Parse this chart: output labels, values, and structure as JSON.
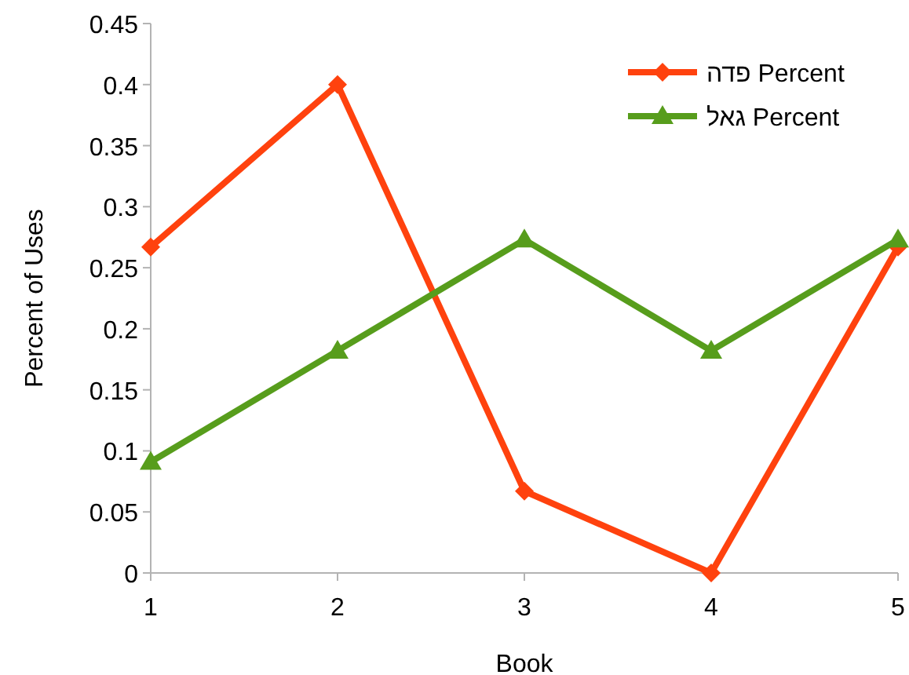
{
  "chart_data": {
    "type": "line",
    "xlabel": "Book",
    "ylabel": "Percent of Uses",
    "x": [
      1,
      2,
      3,
      4,
      5
    ],
    "xlim": [
      1,
      5
    ],
    "xticks": [
      1,
      2,
      3,
      4,
      5
    ],
    "ylim": [
      0,
      0.45
    ],
    "yticks": [
      0,
      0.05,
      0.1,
      0.15,
      0.2,
      0.25,
      0.3,
      0.35,
      0.4,
      0.45
    ],
    "series": [
      {
        "name": "פדה Percent",
        "color": "#ff420e",
        "marker": "diamond",
        "values": [
          0.267,
          0.4,
          0.067,
          0,
          0.267
        ]
      },
      {
        "name": "גאל Percent",
        "color": "#579d1c",
        "marker": "triangle",
        "values": [
          0.091,
          0.182,
          0.273,
          0.182,
          0.273
        ]
      }
    ],
    "legend": "top right",
    "grid": false
  }
}
